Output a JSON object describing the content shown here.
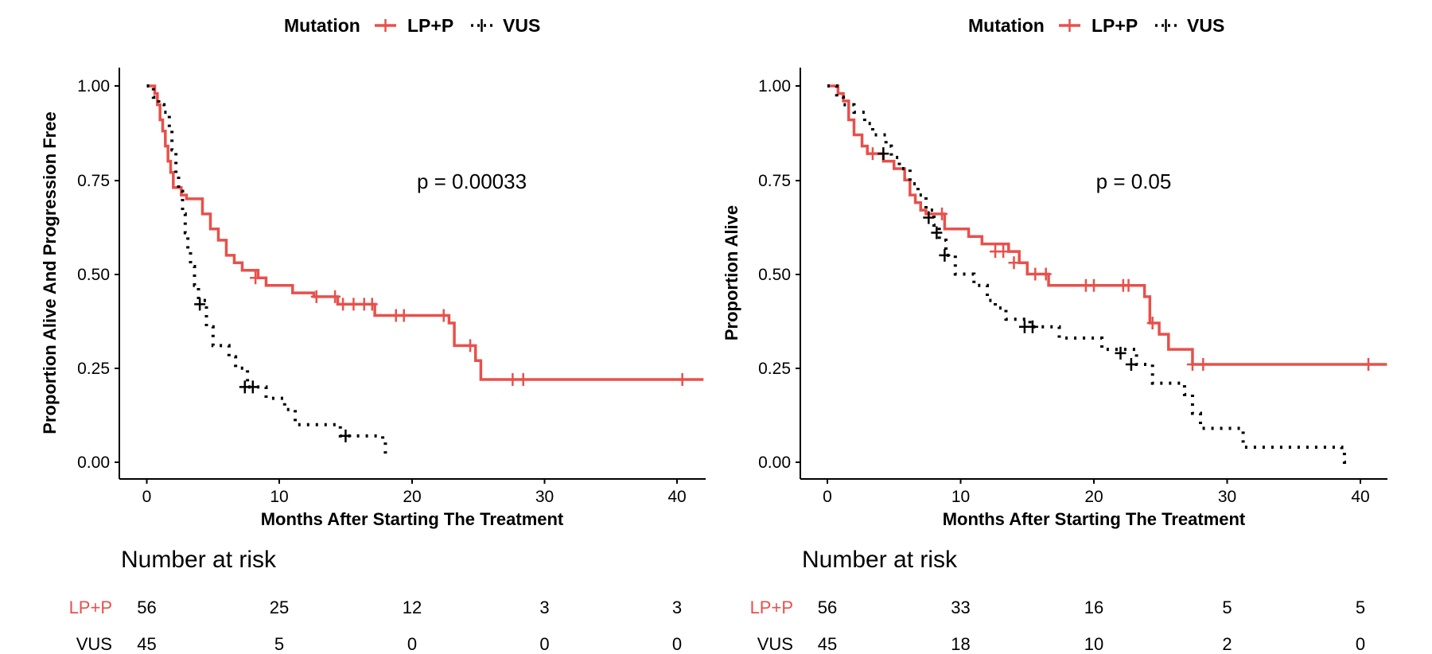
{
  "colors": {
    "lp_p": "#e8504b",
    "vus": "#000000"
  },
  "chart_data": [
    {
      "type": "line",
      "chart_kind": "kaplan-meier",
      "legend": {
        "title": "Mutation",
        "entries": [
          "LP+P",
          "VUS"
        ],
        "position": "top"
      },
      "ylabel": "Proportion Alive And Progression Free",
      "xlabel": "Months After Starting The Treatment",
      "xlim": [
        -2,
        42
      ],
      "ylim": [
        -0.05,
        1.05
      ],
      "x_ticks": [
        "0",
        "10",
        "20",
        "30",
        "40"
      ],
      "y_ticks": [
        "0.00",
        "0.25",
        "0.50",
        "0.75",
        "1.00"
      ],
      "annotation": "p = 0.00033",
      "series": [
        {
          "name": "LP+P",
          "style": "solid",
          "steps": [
            [
              0,
              1.0
            ],
            [
              0.6,
              0.98
            ],
            [
              0.8,
              0.95
            ],
            [
              1.0,
              0.91
            ],
            [
              1.2,
              0.88
            ],
            [
              1.4,
              0.84
            ],
            [
              1.6,
              0.8
            ],
            [
              1.8,
              0.77
            ],
            [
              2.0,
              0.73
            ],
            [
              2.6,
              0.71
            ],
            [
              3.0,
              0.7
            ],
            [
              4.2,
              0.66
            ],
            [
              4.8,
              0.62
            ],
            [
              5.4,
              0.59
            ],
            [
              6.0,
              0.55
            ],
            [
              6.6,
              0.53
            ],
            [
              7.2,
              0.51
            ],
            [
              8.4,
              0.49
            ],
            [
              9.0,
              0.47
            ],
            [
              11.0,
              0.45
            ],
            [
              12.6,
              0.44
            ],
            [
              14.4,
              0.42
            ],
            [
              17.2,
              0.39
            ],
            [
              22.8,
              0.37
            ],
            [
              23.2,
              0.31
            ],
            [
              24.8,
              0.27
            ],
            [
              25.2,
              0.22
            ],
            [
              42.0,
              0.22
            ]
          ],
          "censors": [
            [
              8.2,
              0.49
            ],
            [
              12.8,
              0.44
            ],
            [
              14.2,
              0.44
            ],
            [
              14.8,
              0.42
            ],
            [
              15.6,
              0.42
            ],
            [
              16.4,
              0.42
            ],
            [
              17.0,
              0.42
            ],
            [
              18.8,
              0.39
            ],
            [
              19.4,
              0.39
            ],
            [
              22.4,
              0.39
            ],
            [
              24.4,
              0.31
            ],
            [
              27.6,
              0.22
            ],
            [
              28.4,
              0.22
            ],
            [
              40.4,
              0.22
            ]
          ]
        },
        {
          "name": "VUS",
          "style": "dotted",
          "steps": [
            [
              0,
              1.0
            ],
            [
              0.5,
              0.97
            ],
            [
              0.9,
              0.95
            ],
            [
              1.3,
              0.93
            ],
            [
              1.7,
              0.89
            ],
            [
              1.9,
              0.83
            ],
            [
              2.2,
              0.76
            ],
            [
              2.4,
              0.72
            ],
            [
              2.7,
              0.66
            ],
            [
              2.9,
              0.61
            ],
            [
              3.1,
              0.56
            ],
            [
              3.3,
              0.52
            ],
            [
              3.6,
              0.47
            ],
            [
              3.9,
              0.43
            ],
            [
              4.5,
              0.36
            ],
            [
              5.0,
              0.31
            ],
            [
              6.2,
              0.28
            ],
            [
              6.7,
              0.25
            ],
            [
              7.6,
              0.2
            ],
            [
              9.0,
              0.17
            ],
            [
              10.4,
              0.14
            ],
            [
              11.2,
              0.1
            ],
            [
              14.6,
              0.07
            ],
            [
              17.8,
              0.06
            ],
            [
              18.0,
              0.02
            ],
            [
              18.1,
              0.02
            ]
          ],
          "censors": [
            [
              4.0,
              0.42
            ],
            [
              7.4,
              0.2
            ],
            [
              8.0,
              0.2
            ],
            [
              15.0,
              0.07
            ]
          ]
        }
      ],
      "risk_table": {
        "title": "Number at risk",
        "times": [
          0,
          10,
          20,
          30,
          40
        ],
        "rows": [
          {
            "name": "LP+P",
            "values": [
              "56",
              "25",
              "12",
              "3",
              "3"
            ]
          },
          {
            "name": "VUS",
            "values": [
              "45",
              "5",
              "0",
              "0",
              "0"
            ]
          }
        ]
      }
    },
    {
      "type": "line",
      "chart_kind": "kaplan-meier",
      "legend": {
        "title": "Mutation",
        "entries": [
          "LP+P",
          "VUS"
        ],
        "position": "top"
      },
      "ylabel": "Proportion Alive",
      "xlabel": "Months After Starting The Treatment",
      "xlim": [
        -2,
        42
      ],
      "ylim": [
        -0.05,
        1.05
      ],
      "x_ticks": [
        "0",
        "10",
        "20",
        "30",
        "40"
      ],
      "y_ticks": [
        "0.00",
        "0.25",
        "0.50",
        "0.75",
        "1.00"
      ],
      "annotation": "p = 0.05",
      "series": [
        {
          "name": "LP+P",
          "style": "solid",
          "steps": [
            [
              0,
              1.0
            ],
            [
              0.8,
              0.98
            ],
            [
              1.2,
              0.96
            ],
            [
              1.6,
              0.91
            ],
            [
              2.0,
              0.87
            ],
            [
              2.6,
              0.84
            ],
            [
              3.0,
              0.82
            ],
            [
              4.2,
              0.8
            ],
            [
              5.0,
              0.78
            ],
            [
              5.8,
              0.75
            ],
            [
              6.2,
              0.71
            ],
            [
              6.6,
              0.69
            ],
            [
              7.0,
              0.67
            ],
            [
              7.4,
              0.66
            ],
            [
              8.8,
              0.62
            ],
            [
              10.6,
              0.6
            ],
            [
              11.6,
              0.58
            ],
            [
              13.6,
              0.56
            ],
            [
              14.4,
              0.53
            ],
            [
              15.0,
              0.5
            ],
            [
              16.6,
              0.47
            ],
            [
              23.8,
              0.44
            ],
            [
              24.2,
              0.37
            ],
            [
              24.9,
              0.34
            ],
            [
              25.6,
              0.3
            ],
            [
              27.4,
              0.26
            ],
            [
              42.0,
              0.26
            ]
          ],
          "censors": [
            [
              3.4,
              0.82
            ],
            [
              8.6,
              0.66
            ],
            [
              12.6,
              0.56
            ],
            [
              13.2,
              0.56
            ],
            [
              14.0,
              0.53
            ],
            [
              15.6,
              0.5
            ],
            [
              16.4,
              0.5
            ],
            [
              19.4,
              0.47
            ],
            [
              20.0,
              0.47
            ],
            [
              22.2,
              0.47
            ],
            [
              22.6,
              0.47
            ],
            [
              24.4,
              0.37
            ],
            [
              27.4,
              0.26
            ],
            [
              28.2,
              0.26
            ],
            [
              40.6,
              0.26
            ]
          ]
        },
        {
          "name": "VUS",
          "style": "dotted",
          "steps": [
            [
              0,
              1.0
            ],
            [
              0.7,
              0.97
            ],
            [
              1.2,
              0.95
            ],
            [
              2.0,
              0.93
            ],
            [
              2.8,
              0.9
            ],
            [
              3.4,
              0.87
            ],
            [
              4.4,
              0.84
            ],
            [
              4.8,
              0.81
            ],
            [
              5.4,
              0.78
            ],
            [
              6.2,
              0.74
            ],
            [
              6.8,
              0.71
            ],
            [
              7.4,
              0.67
            ],
            [
              8.0,
              0.63
            ],
            [
              8.4,
              0.59
            ],
            [
              8.9,
              0.55
            ],
            [
              9.6,
              0.5
            ],
            [
              11.0,
              0.47
            ],
            [
              12.0,
              0.43
            ],
            [
              12.6,
              0.41
            ],
            [
              13.4,
              0.38
            ],
            [
              15.2,
              0.36
            ],
            [
              17.4,
              0.33
            ],
            [
              20.6,
              0.3
            ],
            [
              23.2,
              0.26
            ],
            [
              24.4,
              0.21
            ],
            [
              26.8,
              0.18
            ],
            [
              27.4,
              0.13
            ],
            [
              28.0,
              0.09
            ],
            [
              31.2,
              0.04
            ],
            [
              38.6,
              0.03
            ],
            [
              38.8,
              0.0
            ],
            [
              39.0,
              0.0
            ]
          ],
          "censors": [
            [
              4.2,
              0.82
            ],
            [
              7.6,
              0.65
            ],
            [
              8.2,
              0.61
            ],
            [
              8.8,
              0.55
            ],
            [
              14.8,
              0.36
            ],
            [
              15.4,
              0.36
            ],
            [
              22.0,
              0.29
            ],
            [
              22.8,
              0.26
            ]
          ]
        }
      ],
      "risk_table": {
        "title": "Number at risk",
        "times": [
          0,
          10,
          20,
          30,
          40
        ],
        "rows": [
          {
            "name": "LP+P",
            "values": [
              "56",
              "33",
              "16",
              "5",
              "5"
            ]
          },
          {
            "name": "VUS",
            "values": [
              "45",
              "18",
              "10",
              "2",
              "0"
            ]
          }
        ]
      }
    }
  ]
}
